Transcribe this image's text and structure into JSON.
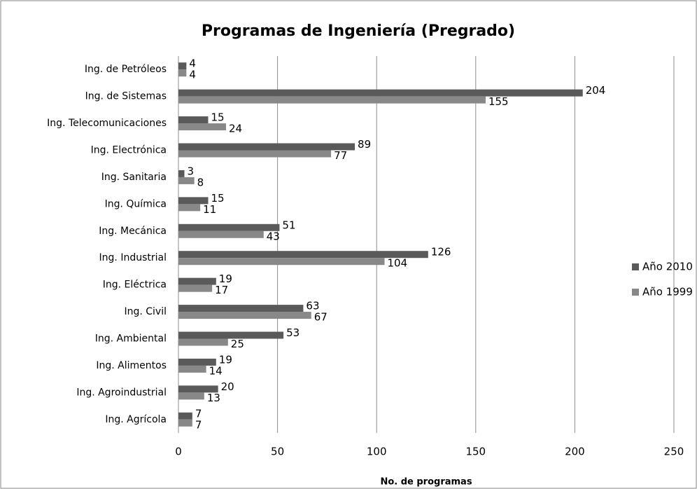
{
  "chart_data": {
    "type": "bar",
    "orientation": "horizontal",
    "title": "Programas de Ingeniería (Pregrado)",
    "x_label": "No. de programas",
    "categories": [
      "Ing. de Petróleos",
      "Ing. de Sistemas",
      "Ing. Telecomunicaciones",
      "Ing. Electrónica",
      "Ing. Sanitaria",
      "Ing. Química",
      "Ing. Mecánica",
      "Ing. Industrial",
      "Ing. Eléctrica",
      "Ing. Civil",
      "Ing. Ambiental",
      "Ing. Alimentos",
      "Ing. Agroindustrial",
      "Ing. Agrícola"
    ],
    "series": [
      {
        "name": "Año 2010",
        "color": "#5a5a5a",
        "values": [
          4,
          204,
          15,
          89,
          3,
          15,
          51,
          126,
          19,
          63,
          53,
          19,
          20,
          7
        ]
      },
      {
        "name": "Año 1999",
        "color": "#888888",
        "values": [
          4,
          155,
          24,
          77,
          8,
          11,
          43,
          104,
          17,
          67,
          25,
          14,
          13,
          7
        ]
      }
    ],
    "xlim": [
      0,
      250
    ],
    "xticks": [
      0,
      50,
      100,
      150,
      200,
      250
    ],
    "grid": true,
    "legend": "right"
  }
}
